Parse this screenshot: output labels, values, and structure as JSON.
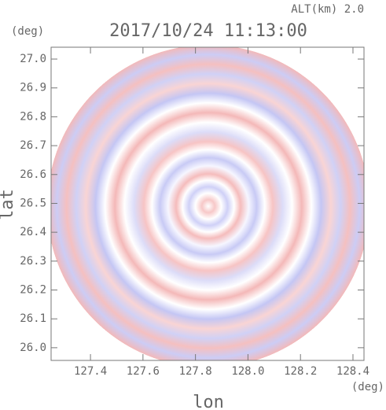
{
  "chart_data": {
    "type": "radar-ppi",
    "title": "2017/10/24 11:13:00",
    "annotation": "ALT(km) 2.0",
    "x_label": "lon",
    "x_unit": "(deg)",
    "y_label": "lat",
    "y_unit": "(deg)",
    "xlim": [
      127.25,
      128.442
    ],
    "ylim": [
      25.956,
      27.041
    ],
    "xticks": [
      127.4,
      127.6,
      127.8,
      {
        "value": 128.0,
        "label": "128.0"
      },
      128.2,
      128.4
    ],
    "yticks": [
      {
        "value": 26.0,
        "label": "26.0"
      },
      26.1,
      26.2,
      26.3,
      26.4,
      26.5,
      26.6,
      26.7,
      26.8,
      26.9,
      {
        "value": 27.0,
        "label": "27.0"
      }
    ],
    "grid": false
  }
}
